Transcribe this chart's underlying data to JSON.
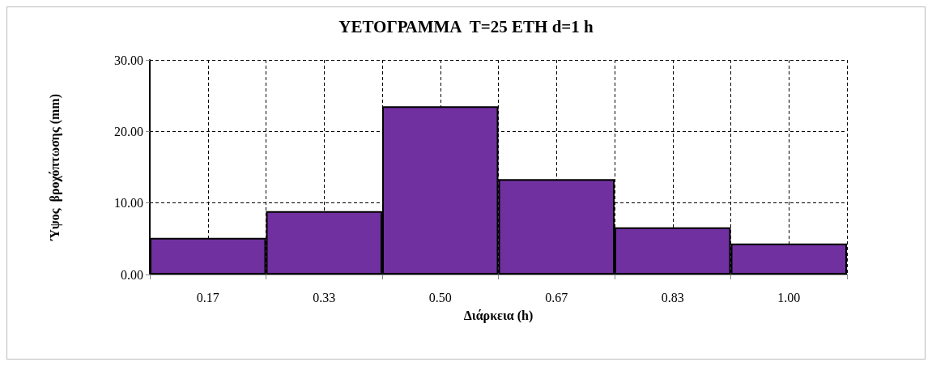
{
  "chart_data": {
    "type": "bar",
    "title": "ΥΕΤΟΓΡΑΜΜΑ  T=25 ΕΤΗ d=1 h",
    "xlabel": "Διάρκεια (h)",
    "ylabel": "Ύψος  βροχόπτωσης (mm)",
    "categories": [
      "0.17",
      "0.33",
      "0.50",
      "0.67",
      "0.83",
      "1.00"
    ],
    "values": [
      5.13,
      8.86,
      23.52,
      13.32,
      6.6,
      4.34
    ],
    "color": "#7030a0",
    "ylim": [
      0,
      30
    ],
    "yticks": [
      {
        "value": 0,
        "label": "0.00"
      },
      {
        "value": 10,
        "label": "10.00"
      },
      {
        "value": 20,
        "label": "20.00"
      },
      {
        "value": 30,
        "label": "30.00"
      }
    ],
    "grid": true
  }
}
